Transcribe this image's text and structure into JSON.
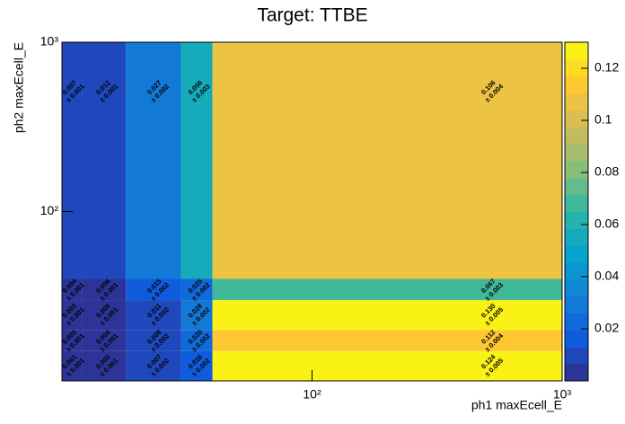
{
  "chart_data": {
    "type": "heatmap",
    "title": "Target: TTBE",
    "x_label": "ph1 maxEcell_E",
    "y_label": "ph2 maxEcell_E",
    "x_edges": [
      10,
      12,
      18,
      30,
      40,
      1000
    ],
    "y_edges": [
      10,
      15,
      20,
      30,
      40,
      1000
    ],
    "xlim": [
      10,
      1000
    ],
    "ylim": [
      10,
      1000
    ],
    "xlog": true,
    "ylog": true,
    "xticks": [
      {
        "value": 100,
        "label": "10²"
      },
      {
        "value": 1000,
        "label": "10³"
      }
    ],
    "yticks": [
      {
        "value": 100,
        "label": "10²"
      },
      {
        "value": 1000,
        "label": "10³"
      }
    ],
    "values": [
      [
        0.001,
        0.003,
        0.007,
        0.016,
        0.124
      ],
      [
        0.002,
        0.004,
        0.008,
        0.02,
        0.112
      ],
      [
        0.003,
        0.005,
        0.011,
        0.028,
        0.13
      ],
      [
        0.004,
        0.006,
        0.015,
        0.025,
        0.067
      ],
      [
        0.007,
        0.012,
        0.027,
        0.056,
        0.106
      ]
    ],
    "value_labels": [
      [
        "0.001",
        "0.003",
        "0.007",
        "0.016",
        "0.124"
      ],
      [
        "0.002",
        "0.004",
        "0.008",
        "0.020",
        "0.112"
      ],
      [
        "0.003",
        "0.005",
        "0.011",
        "0.028",
        "0.130"
      ],
      [
        "0.004",
        "0.006",
        "0.015",
        "0.025",
        "0.067"
      ],
      [
        "0.007",
        "0.012",
        "0.027",
        "0.056",
        "0.106"
      ]
    ],
    "error_labels": [
      [
        "± 0.001",
        "± 0.001",
        "± 0.002",
        "± 0.002",
        "± 0.005"
      ],
      [
        "± 0.001",
        "± 0.001",
        "± 0.002",
        "± 0.002",
        "± 0.004"
      ],
      [
        "± 0.001",
        "± 0.001",
        "± 0.002",
        "± 0.002",
        "± 0.005"
      ],
      [
        "± 0.001",
        "± 0.001",
        "± 0.002",
        "± 0.002",
        "± 0.003"
      ],
      [
        "± 0.001",
        "± 0.001",
        "± 0.002",
        "± 0.003",
        "± 0.004"
      ]
    ],
    "zlim": [
      0,
      0.13
    ],
    "zticks": [
      0.02,
      0.04,
      0.06,
      0.08,
      0.1,
      0.12
    ]
  }
}
